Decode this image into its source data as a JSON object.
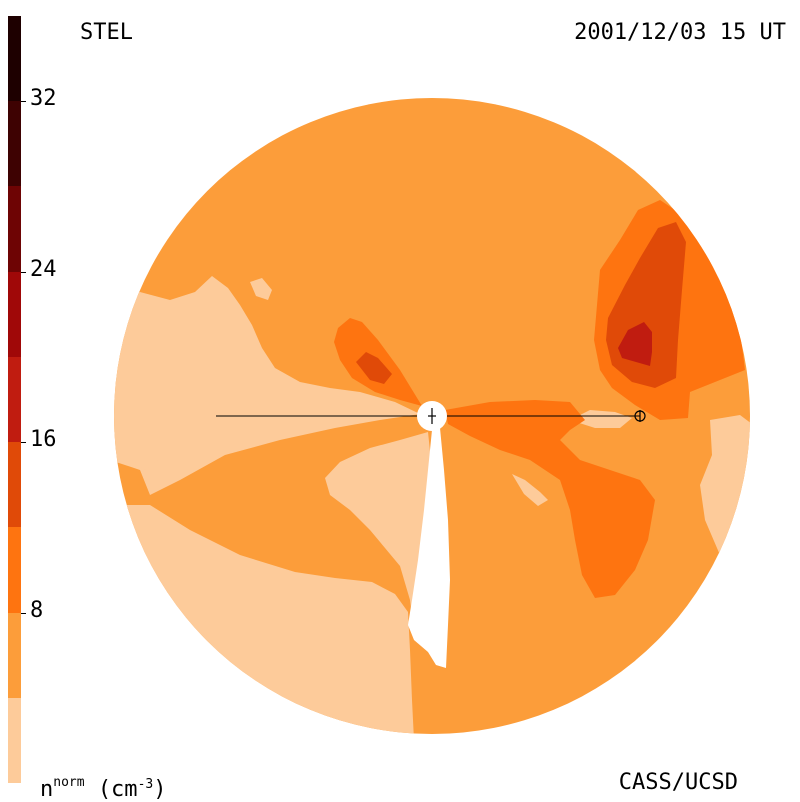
{
  "header": {
    "instrument": "STEL",
    "datetime": "2001/12/03 15 UT"
  },
  "footer": {
    "quantity": "n",
    "quantity_sup": "norm",
    "units_open": "(cm",
    "units_exp": "-3",
    "units_close": ")",
    "credit": "CASS/UCSD"
  },
  "colorbar": {
    "ticks": [
      "8",
      "16",
      "24",
      "32"
    ],
    "levels": [
      {
        "min": 0,
        "max": 4,
        "color": "#fdcb9a"
      },
      {
        "min": 4,
        "max": 8,
        "color": "#fc9d3a"
      },
      {
        "min": 8,
        "max": 12,
        "color": "#fe7410"
      },
      {
        "min": 12,
        "max": 16,
        "color": "#e04a08"
      },
      {
        "min": 16,
        "max": 20,
        "color": "#c01c10"
      },
      {
        "min": 20,
        "max": 24,
        "color": "#a00808"
      },
      {
        "min": 24,
        "max": 28,
        "color": "#6e0404"
      },
      {
        "min": 28,
        "max": 32,
        "color": "#3e0202"
      },
      {
        "min": 32,
        "max": 36,
        "color": "#1e0000"
      }
    ]
  },
  "map": {
    "markers": {
      "sun": "Sun",
      "earth": "Earth"
    }
  }
}
